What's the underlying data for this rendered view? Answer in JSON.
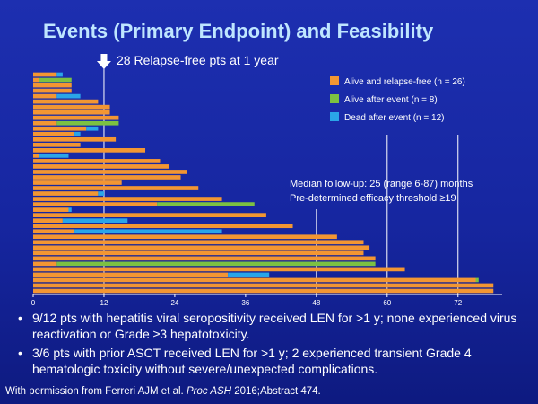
{
  "title": "Events (Primary Endpoint) and Feasibility",
  "annotation": "28 Relapse-free pts at 1 year",
  "notes": [
    "Median follow-up: 25 (range 6-87) months",
    "Pre-determined efficacy threshold ≥19"
  ],
  "bullets": [
    "9/12 pts with hepatitis viral seropositivity received LEN for >1 y; none experienced virus reactivation or Grade ≥3 hepatotoxicity.",
    "3/6 pts with prior ASCT received LEN for >1 y; 2 experienced transient Grade 4 hematologic toxicity without severe/unexpected complications."
  ],
  "credit": {
    "prefix": "With permission from Ferreri AJM et al. ",
    "journal": "Proc ASH",
    "suffix": " 2016;Abstract 474."
  },
  "colors": {
    "alive_relapse_free": "#f39632",
    "alive_after_event": "#7cc142",
    "dead_after_event": "#2aa5e8",
    "background": "#1a2aa8",
    "arrow": "#ffffff"
  },
  "chart_data": {
    "type": "bar",
    "orientation": "horizontal",
    "stacked": true,
    "xlim": [
      0,
      78
    ],
    "x_ticks": [
      0,
      12,
      24,
      36,
      48,
      60,
      72
    ],
    "vertical_reference_lines": [
      12,
      48,
      60,
      72
    ],
    "legend_position": "top-right",
    "series": [
      {
        "name": "Alive and relapse-free (n = 26)",
        "key": "alive_relapse_free"
      },
      {
        "name": "Alive after event (n = 8)",
        "key": "alive_after_event"
      },
      {
        "name": "Dead after event (n = 12)",
        "key": "dead_after_event"
      }
    ],
    "patients": [
      [
        [
          "alive_relapse_free",
          4
        ],
        [
          "dead_after_event",
          1
        ]
      ],
      [
        [
          "alive_relapse_free",
          1
        ],
        [
          "alive_after_event",
          5.5
        ]
      ],
      [
        [
          "alive_relapse_free",
          6.5
        ]
      ],
      [
        [
          "alive_relapse_free",
          6.5
        ]
      ],
      [
        [
          "alive_relapse_free",
          4
        ],
        [
          "dead_after_event",
          4
        ]
      ],
      [
        [
          "alive_relapse_free",
          11
        ]
      ],
      [
        [
          "alive_relapse_free",
          13
        ]
      ],
      [
        [
          "alive_relapse_free",
          13
        ]
      ],
      [
        [
          "alive_relapse_free",
          14.5
        ]
      ],
      [
        [
          "alive_relapse_free",
          4
        ],
        [
          "alive_after_event",
          10.5
        ]
      ],
      [
        [
          "alive_relapse_free",
          9
        ],
        [
          "dead_after_event",
          2
        ]
      ],
      [
        [
          "alive_relapse_free",
          7
        ],
        [
          "dead_after_event",
          1
        ]
      ],
      [
        [
          "alive_relapse_free",
          14
        ]
      ],
      [
        [
          "alive_relapse_free",
          8
        ]
      ],
      [
        [
          "alive_relapse_free",
          19
        ]
      ],
      [
        [
          "alive_relapse_free",
          1
        ],
        [
          "dead_after_event",
          5
        ]
      ],
      [
        [
          "alive_relapse_free",
          21.5
        ]
      ],
      [
        [
          "alive_relapse_free",
          23
        ]
      ],
      [
        [
          "alive_relapse_free",
          26
        ]
      ],
      [
        [
          "alive_relapse_free",
          25
        ]
      ],
      [
        [
          "alive_relapse_free",
          15
        ]
      ],
      [
        [
          "alive_relapse_free",
          28
        ]
      ],
      [
        [
          "alive_relapse_free",
          11
        ],
        [
          "dead_after_event",
          1
        ]
      ],
      [
        [
          "alive_relapse_free",
          32
        ]
      ],
      [
        [
          "alive_relapse_free",
          21
        ],
        [
          "alive_after_event",
          16.5
        ]
      ],
      [
        [
          "alive_relapse_free",
          6
        ],
        [
          "dead_after_event",
          0.5
        ]
      ],
      [
        [
          "alive_relapse_free",
          39.5
        ]
      ],
      [
        [
          "alive_relapse_free",
          5
        ],
        [
          "dead_after_event",
          11
        ]
      ],
      [
        [
          "alive_relapse_free",
          44
        ]
      ],
      [
        [
          "alive_relapse_free",
          7
        ],
        [
          "dead_after_event",
          25
        ]
      ],
      [
        [
          "alive_relapse_free",
          51.5
        ]
      ],
      [
        [
          "alive_relapse_free",
          56
        ]
      ],
      [
        [
          "alive_relapse_free",
          57
        ]
      ],
      [
        [
          "alive_relapse_free",
          56
        ]
      ],
      [
        [
          "alive_relapse_free",
          58
        ]
      ],
      [
        [
          "alive_relapse_free",
          4
        ],
        [
          "alive_after_event",
          54
        ]
      ],
      [
        [
          "alive_relapse_free",
          63
        ]
      ],
      [
        [
          "alive_relapse_free",
          33
        ],
        [
          "dead_after_event",
          7
        ]
      ],
      [
        [
          "alive_relapse_free",
          75
        ],
        [
          "alive_after_event",
          0.5
        ]
      ],
      [
        [
          "alive_relapse_free",
          78
        ]
      ],
      [
        [
          "alive_relapse_free",
          78
        ]
      ]
    ]
  }
}
